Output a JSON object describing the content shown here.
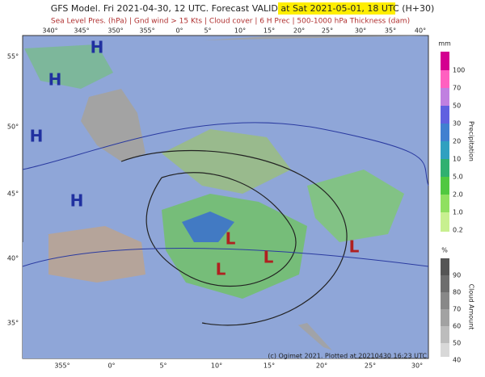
{
  "header": {
    "title": "GFS Model. Fri 2021-04-30, 12 UTC. Forecast VALID at",
    "valid": "Sat 2021-05-01, 18 UTC",
    "lead": "(H+30)",
    "subtitle": "Sea Level Pres. (hPa) | Gnd wind > 15 Kts | Cloud cover | 6 H Prec | 500-1000 hPa Thickness (dam)"
  },
  "map": {
    "top_longitudes": [
      "340°",
      "345°",
      "350°",
      "355°",
      "0°",
      "5°",
      "10°",
      "15°",
      "20°",
      "25°",
      "30°",
      "35°",
      "40°"
    ],
    "bottom_longitudes": [
      "355°",
      "0°",
      "5°",
      "10°",
      "15°",
      "20°",
      "25°",
      "30°"
    ],
    "latitudes": [
      "55°",
      "50°",
      "45°",
      "40°",
      "35°"
    ],
    "highs": [
      "H",
      "H",
      "H",
      "H"
    ],
    "lows": [
      "L",
      "L",
      "L",
      "L"
    ],
    "credit": "(c) Ogimet 2021. Plotted at 20210430 16:23 UTC"
  },
  "precipitation_legend": {
    "unit": "mm",
    "title": "Precipitation",
    "labels": [
      "100",
      "70",
      "50",
      "30",
      "20",
      "10",
      "5.0",
      "2.0",
      "1.0",
      "0.2"
    ]
  },
  "cloud_legend": {
    "unit": "%",
    "title": "Cloud Amount",
    "labels": [
      "90",
      "80",
      "70",
      "60",
      "50",
      "40"
    ]
  }
}
